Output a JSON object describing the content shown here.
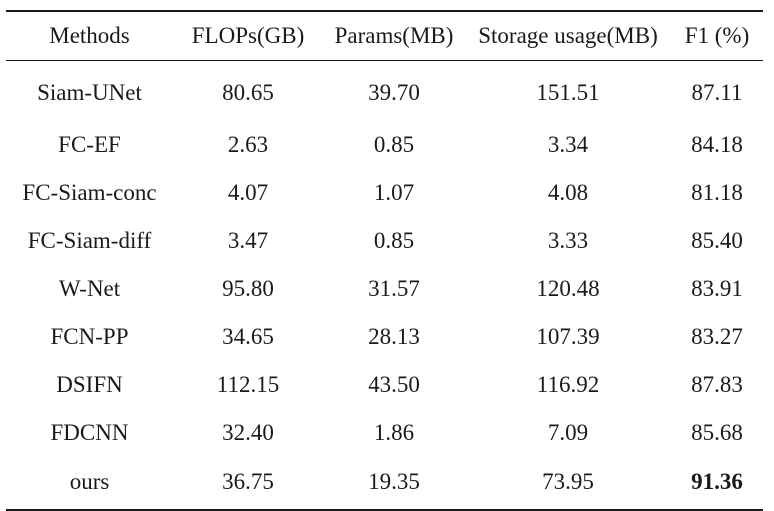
{
  "table": {
    "headers": [
      "Methods",
      "FLOPs(GB)",
      "Params(MB)",
      "Storage usage(MB)",
      "F1 (%)"
    ],
    "rows": [
      {
        "method": "Siam-UNet",
        "flops": "80.65",
        "params": "39.70",
        "storage": "151.51",
        "f1": "87.11"
      },
      {
        "method": "FC-EF",
        "flops": "2.63",
        "params": "0.85",
        "storage": "3.34",
        "f1": "84.18"
      },
      {
        "method": "FC-Siam-conc",
        "flops": "4.07",
        "params": "1.07",
        "storage": "4.08",
        "f1": "81.18"
      },
      {
        "method": "FC-Siam-diff",
        "flops": "3.47",
        "params": "0.85",
        "storage": "3.33",
        "f1": "85.40"
      },
      {
        "method": "W-Net",
        "flops": "95.80",
        "params": "31.57",
        "storage": "120.48",
        "f1": "83.91"
      },
      {
        "method": "FCN-PP",
        "flops": "34.65",
        "params": "28.13",
        "storage": "107.39",
        "f1": "83.27"
      },
      {
        "method": "DSIFN",
        "flops": "112.15",
        "params": "43.50",
        "storage": "116.92",
        "f1": "87.83"
      },
      {
        "method": "FDCNN",
        "flops": "32.40",
        "params": "1.86",
        "storage": "7.09",
        "f1": "85.68"
      },
      {
        "method": "ours",
        "flops": "36.75",
        "params": "19.35",
        "storage": "73.95",
        "f1": "91.36"
      }
    ]
  }
}
